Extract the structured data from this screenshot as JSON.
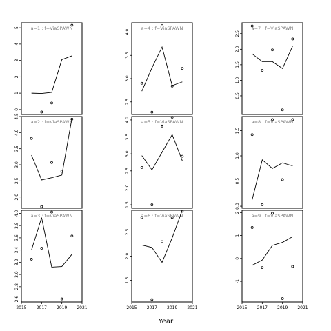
{
  "chart_data": {
    "type": "line",
    "layout": "3x3 facet grid, columns filled first",
    "xlabel": "Year",
    "xlim": [
      2015,
      2021
    ],
    "xticks": [
      2015,
      2017,
      2019,
      2021
    ],
    "x_values": [
      2016,
      2017,
      2018,
      2019,
      2020
    ],
    "line_color": "#000000",
    "strip_text_color": "#7f7f7f",
    "panels": [
      {
        "label": "a=1 : f=ViaSPAWN",
        "ylim": [
          -0.3,
          5.3
        ],
        "yticks": [
          0,
          1,
          2,
          3,
          4,
          5
        ],
        "line": [
          1.0,
          0.98,
          1.05,
          3.05,
          3.28
        ],
        "points": [
          {
            "x": 2017,
            "y": -0.15
          },
          {
            "x": 2018,
            "y": 0.4
          },
          {
            "x": 2020,
            "y": 5.15
          }
        ]
      },
      {
        "label": "a=2 : f=ViaSPAWN",
        "ylim": [
          1.65,
          4.5
        ],
        "yticks": [
          2.0,
          2.5,
          3.0,
          3.5,
          4.0,
          4.5
        ],
        "line": [
          3.3,
          2.53,
          2.6,
          2.68,
          4.45
        ],
        "points": [
          {
            "x": 2016,
            "y": 3.82
          },
          {
            "x": 2017,
            "y": 1.7
          },
          {
            "x": 2018,
            "y": 3.07
          },
          {
            "x": 2019,
            "y": 2.8
          },
          {
            "x": 2020,
            "y": 4.42
          }
        ]
      },
      {
        "label": "a=3 : f=ViaSPAWN",
        "ylim": [
          2.55,
          4.05
        ],
        "yticks": [
          2.6,
          2.8,
          3.0,
          3.2,
          3.4,
          3.6,
          3.8,
          4.0
        ],
        "line": [
          3.4,
          3.93,
          3.12,
          3.13,
          3.33
        ],
        "points": [
          {
            "x": 2016,
            "y": 3.25
          },
          {
            "x": 2017,
            "y": 3.43
          },
          {
            "x": 2018,
            "y": 4.02
          },
          {
            "x": 2019,
            "y": 2.6
          },
          {
            "x": 2020,
            "y": 3.63
          }
        ]
      },
      {
        "label": "a=4 : f=ViaSPAWN",
        "ylim": [
          2.23,
          4.2
        ],
        "yticks": [
          2.5,
          3.0,
          3.5,
          4.0
        ],
        "line": [
          2.73,
          3.23,
          3.68,
          2.85,
          2.93
        ],
        "points": [
          {
            "x": 2016,
            "y": 2.9
          },
          {
            "x": 2017,
            "y": 2.28
          },
          {
            "x": 2018,
            "y": 4.18
          },
          {
            "x": 2019,
            "y": 2.84
          },
          {
            "x": 2020,
            "y": 3.22
          }
        ]
      },
      {
        "label": "a=5 : f=ViaSPAWN",
        "ylim": [
          1.4,
          4.1
        ],
        "yticks": [
          1.5,
          2.0,
          2.5,
          3.0,
          3.5,
          4.0
        ],
        "line": [
          2.95,
          2.53,
          3.05,
          3.57,
          2.8
        ],
        "points": [
          {
            "x": 2016,
            "y": 2.6
          },
          {
            "x": 2017,
            "y": 1.5
          },
          {
            "x": 2018,
            "y": 3.82
          },
          {
            "x": 2019,
            "y": 4.08
          },
          {
            "x": 2020,
            "y": 2.93
          }
        ]
      },
      {
        "label": "a=6 : f=ViaSPAWN",
        "ylim": [
          1.05,
          2.95
        ],
        "yticks": [
          1.5,
          2.0,
          2.5
        ],
        "line": [
          2.23,
          2.18,
          1.87,
          2.38,
          2.95
        ],
        "points": [
          {
            "x": 2016,
            "y": 2.8
          },
          {
            "x": 2017,
            "y": 1.1
          },
          {
            "x": 2018,
            "y": 2.3
          },
          {
            "x": 2019,
            "y": 2.8
          },
          {
            "x": 2020,
            "y": 2.93
          }
        ]
      },
      {
        "label": "a=7 : f=ViaSPAWN",
        "ylim": [
          -0.1,
          2.85
        ],
        "yticks": [
          0.5,
          1.0,
          1.5,
          2.0,
          2.5
        ],
        "line": [
          1.85,
          1.6,
          1.6,
          1.38,
          2.1
        ],
        "points": [
          {
            "x": 2016,
            "y": 2.75
          },
          {
            "x": 2017,
            "y": 1.32
          },
          {
            "x": 2018,
            "y": 1.98
          },
          {
            "x": 2019,
            "y": 0.05
          },
          {
            "x": 2020,
            "y": 2.33
          }
        ]
      },
      {
        "label": "a=8 : f=ViaSPAWN",
        "ylim": [
          -0.04,
          1.78
        ],
        "yticks": [
          0.0,
          0.5,
          1.0,
          1.5
        ],
        "line": [
          0.13,
          0.92,
          0.75,
          0.86,
          0.8
        ],
        "points": [
          {
            "x": 2016,
            "y": 1.42
          },
          {
            "x": 2017,
            "y": 0.03
          },
          {
            "x": 2018,
            "y": 1.72
          },
          {
            "x": 2019,
            "y": 0.53
          },
          {
            "x": 2020,
            "y": 1.72
          }
        ]
      },
      {
        "label": "a=9 : f=ViaSPAWN",
        "ylim": [
          -1.9,
          2.1
        ],
        "yticks": [
          -1,
          0,
          1,
          2
        ],
        "line": [
          -0.3,
          -0.07,
          0.57,
          0.7,
          0.95
        ],
        "points": [
          {
            "x": 2016,
            "y": 1.35
          },
          {
            "x": 2017,
            "y": -0.4
          },
          {
            "x": 2018,
            "y": 1.97
          },
          {
            "x": 2019,
            "y": -1.75
          },
          {
            "x": 2020,
            "y": -0.35
          }
        ]
      }
    ]
  }
}
